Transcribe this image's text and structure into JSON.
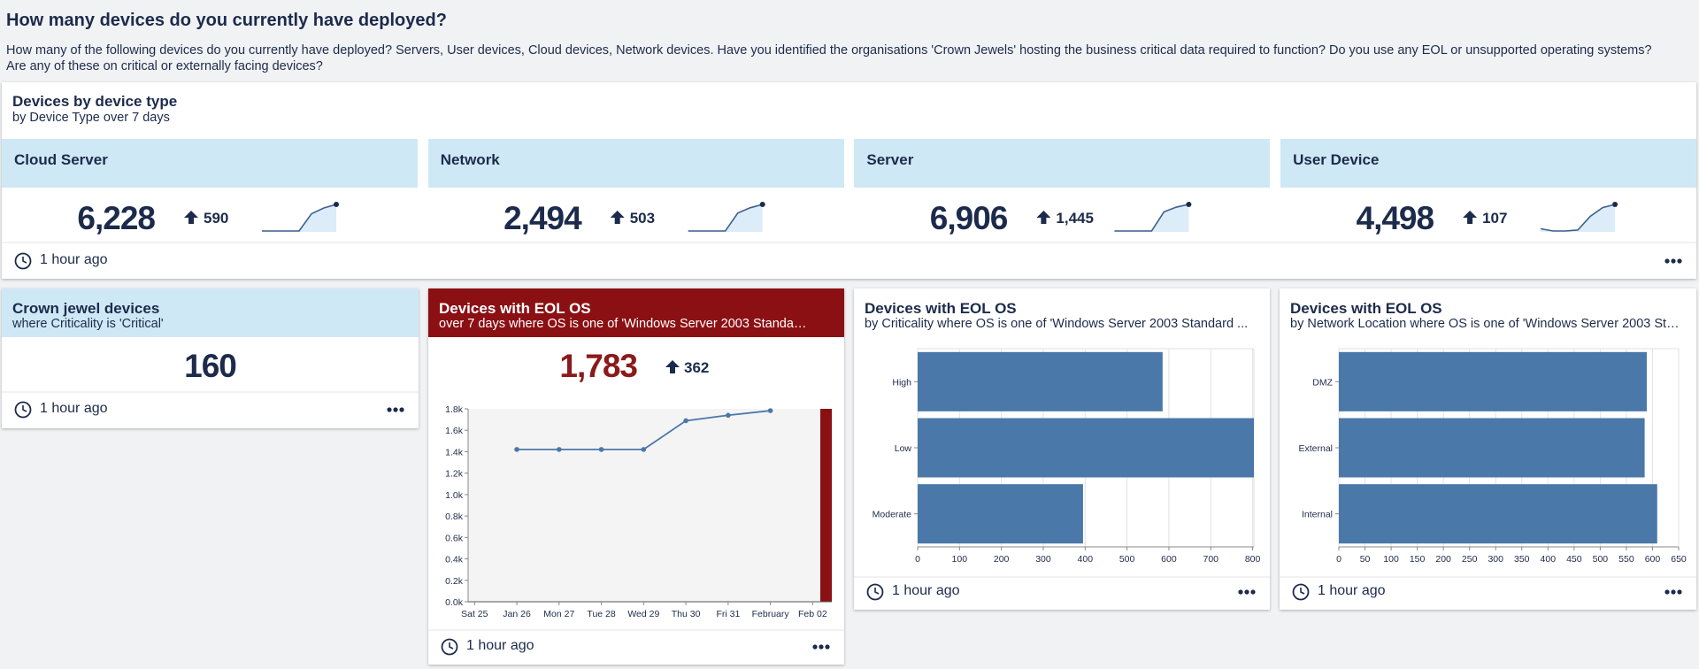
{
  "header": {
    "title": "How many devices do you currently have deployed?",
    "description": "How many of the following devices do you currently have deployed? Servers, User devices, Cloud devices, Network devices. Have you identified the organisations 'Crown Jewels' hosting the business critical data required to function? Do you use any EOL or unsupported operating systems? Are any of these on critical or externally facing devices?"
  },
  "device_panel": {
    "title": "Devices by device type",
    "subtitle": "by Device Type over 7 days",
    "footer": "1 hour ago",
    "tiles": [
      {
        "label": "Cloud Server",
        "value": "6,228",
        "delta": "590",
        "sparkline": {
          "type": "line",
          "values": [
            5638,
            5638,
            5638,
            5638,
            6020,
            6150,
            6228
          ]
        }
      },
      {
        "label": "Network",
        "value": "2,494",
        "delta": "503",
        "sparkline": {
          "type": "line",
          "values": [
            1991,
            1991,
            1991,
            1991,
            2330,
            2430,
            2494
          ]
        }
      },
      {
        "label": "Server",
        "value": "6,906",
        "delta": "1,445",
        "sparkline": {
          "type": "line",
          "values": [
            5461,
            5461,
            5461,
            5461,
            6500,
            6760,
            6906
          ]
        }
      },
      {
        "label": "User Device",
        "value": "4,498",
        "delta": "107",
        "sparkline": {
          "type": "line",
          "values": [
            4400,
            4391,
            4391,
            4395,
            4450,
            4485,
            4498
          ]
        }
      }
    ]
  },
  "crown_panel": {
    "title": "Crown jewel devices",
    "subtitle": "where Criticality is 'Critical'",
    "value": "160",
    "footer": "1 hour ago"
  },
  "eol_trend_panel": {
    "title": "Devices with EOL OS",
    "subtitle": "over 7 days where OS is one of 'Windows Server 2003 Standa…",
    "value": "1,783",
    "delta": "362",
    "footer": "1 hour ago",
    "chart": {
      "type": "line",
      "color": "#4a78a8",
      "categories": [
        "Sat 25",
        "Jan 26",
        "Mon 27",
        "Tue 28",
        "Wed 29",
        "Thu 30",
        "Fri 31",
        "February",
        "Feb 02"
      ],
      "values": [
        null,
        1421,
        1421,
        1421,
        1421,
        1689,
        1740,
        1783,
        null
      ],
      "ylim": [
        0,
        1800
      ],
      "yticks": [
        {
          "value": 0,
          "label": "0.0k"
        },
        {
          "value": 200,
          "label": "0.2k"
        },
        {
          "value": 400,
          "label": "0.4k"
        },
        {
          "value": 600,
          "label": "0.6k"
        },
        {
          "value": 800,
          "label": "0.8k"
        },
        {
          "value": 1000,
          "label": "1.0k"
        },
        {
          "value": 1200,
          "label": "1.2k"
        },
        {
          "value": 1400,
          "label": "1.4k"
        },
        {
          "value": 1600,
          "label": "1.6k"
        },
        {
          "value": 1800,
          "label": "1.8k"
        }
      ]
    }
  },
  "eol_bar_panels": [
    {
      "title": "Devices with EOL OS",
      "subtitle": "by Criticality where OS is one of 'Windows Server 2003 Standard ...",
      "footer": "1 hour ago",
      "chart": {
        "type": "bar",
        "color": "#4a78a8",
        "categories": [
          "High",
          "Low",
          "Moderate"
        ],
        "values": [
          585,
          803,
          395
        ],
        "xlim": [
          0,
          803
        ],
        "xticks": [
          0,
          100,
          200,
          300,
          400,
          500,
          600,
          700,
          800
        ],
        "grid": true
      }
    },
    {
      "title": "Devices with EOL OS",
      "subtitle": "by Network Location where OS is one of 'Windows Server 2003 St…",
      "footer": "1 hour ago",
      "chart": {
        "type": "bar",
        "color": "#4a78a8",
        "categories": [
          "DMZ",
          "External",
          "Internal"
        ],
        "values": [
          589,
          585,
          609
        ],
        "xlim": [
          0,
          650
        ],
        "xticks": [
          0,
          50,
          100,
          150,
          200,
          250,
          300,
          350,
          400,
          450,
          500,
          550,
          600,
          650
        ],
        "grid": true
      }
    }
  ]
}
